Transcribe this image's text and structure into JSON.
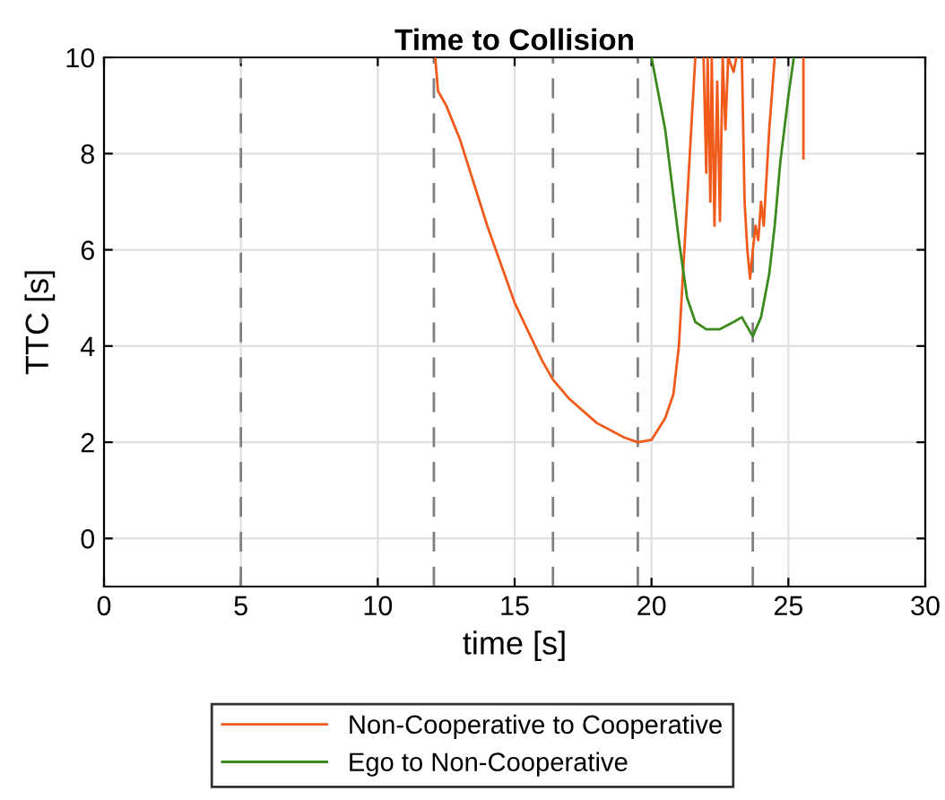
{
  "chart_data": {
    "type": "line",
    "title": "Time to Collision",
    "xlabel": "time [s]",
    "ylabel": "TTC [s]",
    "xlim": [
      0,
      30
    ],
    "ylim": [
      -1,
      10
    ],
    "xticks": [
      0,
      5,
      10,
      15,
      20,
      25,
      30
    ],
    "yticks": [
      0,
      2,
      4,
      6,
      8,
      10
    ],
    "grid": true,
    "legend": "bottom",
    "ref_lines": [
      {
        "axis": "x",
        "value": 5,
        "color": "#808080",
        "line_style": "dashed"
      },
      {
        "axis": "x",
        "value": 12.05,
        "color": "#808080",
        "line_style": "dashed"
      },
      {
        "axis": "x",
        "value": 16.4,
        "color": "#808080",
        "line_style": "dashed"
      },
      {
        "axis": "x",
        "value": 19.5,
        "color": "#808080",
        "line_style": "dashed"
      },
      {
        "axis": "x",
        "value": 23.7,
        "color": "#808080",
        "line_style": "dashed"
      }
    ],
    "series": [
      {
        "name": "Non-Cooperative to Cooperative",
        "color": "#f05a1a",
        "x": [
          12.1,
          12.2,
          12.5,
          13,
          14,
          15,
          16,
          16.4,
          17,
          18,
          19,
          19.5,
          20,
          20.5,
          20.8,
          21,
          21.2,
          21.4,
          21.6,
          21.7,
          21.9,
          22.0,
          22.05,
          22.15,
          22.2,
          22.3,
          22.4,
          22.5,
          22.6,
          22.7,
          22.8,
          23.0,
          23.1,
          23.2,
          23.3,
          23.4,
          23.5,
          23.6,
          23.7,
          23.8,
          23.9,
          24.0,
          24.1,
          24.3,
          24.5,
          24.6,
          25.55,
          25.55
        ],
        "values": [
          10,
          9.3,
          9.0,
          8.3,
          6.5,
          4.9,
          3.7,
          3.3,
          2.9,
          2.4,
          2.1,
          2.0,
          2.05,
          2.5,
          3.0,
          4,
          6,
          8,
          10,
          null,
          10,
          7.6,
          10,
          7.0,
          10,
          6.5,
          9.5,
          6.6,
          10,
          8.5,
          10,
          9.7,
          10,
          null,
          10,
          7,
          6.0,
          5.4,
          6.0,
          6.5,
          6.2,
          7.0,
          6.5,
          8.5,
          10,
          null,
          10,
          7.9
        ]
      },
      {
        "name": "Ego to Non-Cooperative",
        "color": "#3a8a1e",
        "x": [
          20,
          20.5,
          21,
          21.3,
          21.6,
          22,
          22.5,
          23,
          23.3,
          23.7,
          24,
          24.3,
          24.5,
          24.7,
          25,
          25.2
        ],
        "values": [
          10,
          8.5,
          6.2,
          5.0,
          4.5,
          4.35,
          4.35,
          4.5,
          4.6,
          4.2,
          4.6,
          5.5,
          6.5,
          7.8,
          9.2,
          10
        ]
      }
    ]
  }
}
